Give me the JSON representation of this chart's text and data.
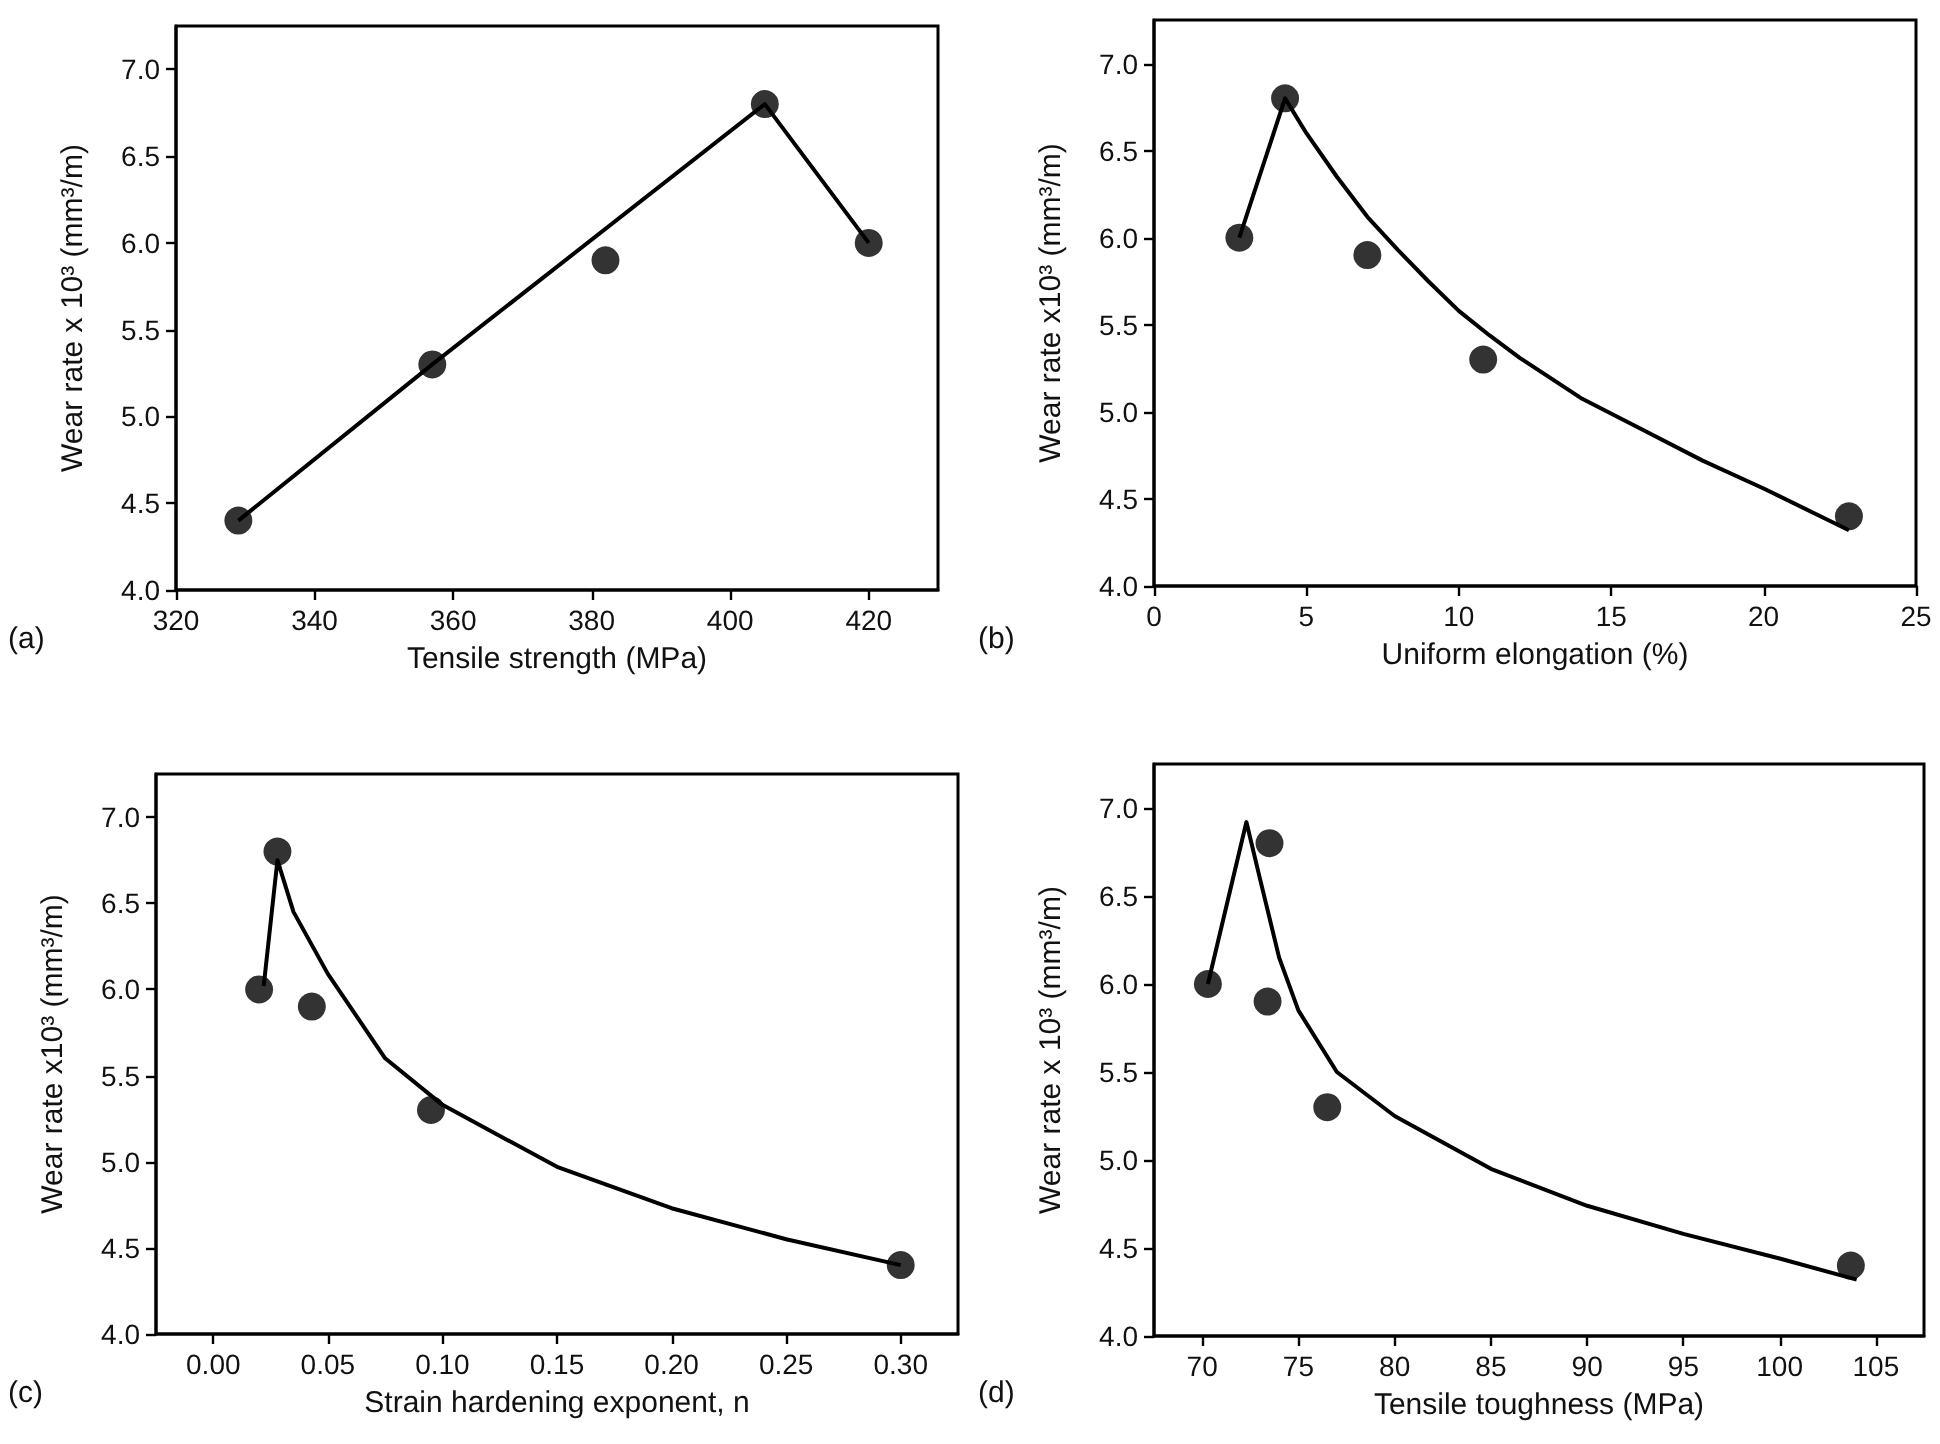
{
  "chart_data": [
    {
      "type": "scatter",
      "xlabel": "Tensile strength (MPa)",
      "ylabel": "Wear rate x 10³ (mm³/m)",
      "annotations": [
        "(a)"
      ],
      "xlim": [
        320,
        430
      ],
      "xticks": [
        320,
        340,
        360,
        380,
        400,
        420
      ],
      "ylim": [
        4,
        7.25
      ],
      "yticks": [
        {
          "value": 4,
          "label": "4.0"
        },
        4.5,
        {
          "value": 5,
          "label": "5.0"
        },
        5.5,
        {
          "value": 6,
          "label": "6.0"
        },
        6.5,
        {
          "value": 7,
          "label": "7.0"
        }
      ],
      "series": [
        {
          "type": "scatter",
          "marker": "circle",
          "color": "#000000",
          "x": [
            329,
            357,
            382,
            405,
            420
          ],
          "values": [
            4.4,
            5.3,
            5.9,
            6.8,
            6.0
          ]
        },
        {
          "type": "line",
          "marker": "none",
          "color": "#000000",
          "x": [
            329,
            357,
            405,
            420
          ],
          "values": [
            4.4,
            5.3,
            6.8,
            6.0
          ]
        }
      ]
    },
    {
      "type": "scatter",
      "xlabel": "Uniform elongation (%)",
      "ylabel": "Wear rate x10³ (mm³/m)",
      "annotations": [
        "(b)"
      ],
      "xlim": [
        0,
        25
      ],
      "xticks": [
        0,
        5,
        10,
        15,
        20,
        25
      ],
      "ylim": [
        4,
        7.25
      ],
      "yticks": [
        {
          "value": 4,
          "label": "4.0"
        },
        4.5,
        {
          "value": 5,
          "label": "5.0"
        },
        5.5,
        {
          "value": 6,
          "label": "6.0"
        },
        6.5,
        {
          "value": 7,
          "label": "7.0"
        }
      ],
      "series": [
        {
          "type": "scatter",
          "marker": "circle",
          "color": "#000000",
          "x": [
            2.8,
            4.3,
            7.0,
            10.8,
            22.8
          ],
          "values": [
            6.0,
            6.8,
            5.9,
            5.3,
            4.4
          ]
        },
        {
          "type": "line",
          "marker": "none",
          "color": "#000000",
          "x": [
            2.8,
            4.3,
            5,
            6,
            7,
            8,
            9,
            10,
            11,
            12,
            14,
            16,
            18,
            20,
            22.8
          ],
          "values": [
            6.0,
            6.8,
            6.6,
            6.35,
            6.12,
            5.93,
            5.75,
            5.58,
            5.44,
            5.31,
            5.08,
            4.9,
            4.72,
            4.56,
            4.32
          ]
        }
      ]
    },
    {
      "type": "scatter",
      "xlabel": "Strain hardening exponent, n",
      "ylabel": "Wear rate x10³ (mm³/m)",
      "annotations": [
        "(c)"
      ],
      "xlim": [
        -0.025,
        0.325
      ],
      "xticks": [
        {
          "value": 0,
          "label": "0.00"
        },
        0.05,
        {
          "value": 0.1,
          "label": "0.10"
        },
        0.15,
        {
          "value": 0.2,
          "label": "0.20"
        },
        0.25,
        {
          "value": 0.3,
          "label": "0.30"
        }
      ],
      "ylim": [
        4,
        7.25
      ],
      "yticks": [
        {
          "value": 4,
          "label": "4.0"
        },
        4.5,
        {
          "value": 5,
          "label": "5.0"
        },
        5.5,
        {
          "value": 6,
          "label": "6.0"
        },
        6.5,
        {
          "value": 7,
          "label": "7.0"
        }
      ],
      "series": [
        {
          "type": "scatter",
          "marker": "circle",
          "color": "#000000",
          "x": [
            0.02,
            0.028,
            0.043,
            0.095,
            0.3
          ],
          "values": [
            6.0,
            6.8,
            5.9,
            5.3,
            4.4
          ]
        },
        {
          "type": "line",
          "marker": "none",
          "color": "#000000",
          "x": [
            0.022,
            0.028,
            0.035,
            0.05,
            0.075,
            0.1,
            0.15,
            0.2,
            0.25,
            0.3
          ],
          "values": [
            6.02,
            6.75,
            6.45,
            6.09,
            5.6,
            5.33,
            4.97,
            4.73,
            4.55,
            4.4
          ]
        }
      ]
    },
    {
      "type": "scatter",
      "xlabel": "Tensile toughness (MPa)",
      "ylabel": "Wear rate x 10³ (mm³/m)",
      "annotations": [
        "(d)"
      ],
      "xlim": [
        67.5,
        107.5
      ],
      "xticks": [
        70,
        75,
        80,
        85,
        90,
        95,
        100,
        105
      ],
      "ylim": [
        4,
        7.25
      ],
      "yticks": [
        {
          "value": 4,
          "label": "4.0"
        },
        4.5,
        {
          "value": 5,
          "label": "5.0"
        },
        5.5,
        {
          "value": 6,
          "label": "6.0"
        },
        6.5,
        {
          "value": 7,
          "label": "7.0"
        }
      ],
      "series": [
        {
          "type": "scatter",
          "marker": "circle",
          "color": "#000000",
          "x": [
            70.3,
            73.5,
            73.4,
            76.5,
            103.7
          ],
          "values": [
            6.0,
            6.8,
            5.9,
            5.3,
            4.4
          ]
        },
        {
          "type": "line",
          "marker": "none",
          "color": "#000000",
          "x": [
            70.3,
            72.3,
            73,
            74,
            75,
            77,
            80,
            85,
            90,
            95,
            100,
            104
          ],
          "values": [
            6.0,
            6.92,
            6.6,
            6.15,
            5.85,
            5.5,
            5.25,
            4.95,
            4.74,
            4.58,
            4.44,
            4.32
          ]
        }
      ]
    }
  ]
}
